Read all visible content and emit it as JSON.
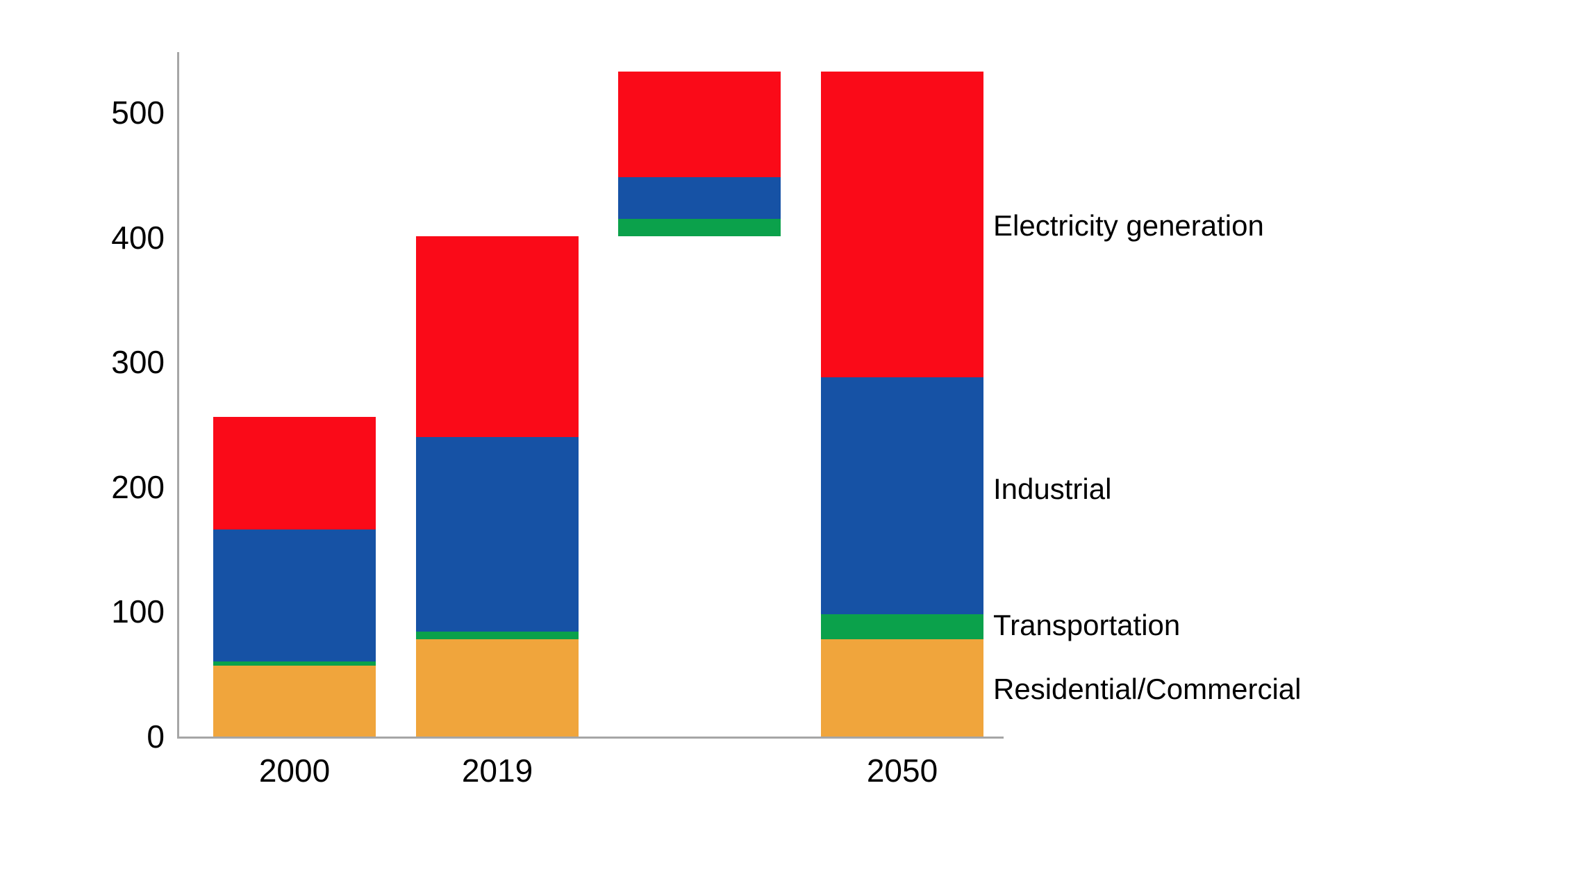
{
  "chart_data": {
    "type": "bar",
    "stacked": true,
    "title": "",
    "xlabel": "",
    "ylabel": "",
    "grid": false,
    "legend_position": "right-of-last-bar",
    "yticks": [
      0,
      100,
      200,
      300,
      400,
      500
    ],
    "ylim": [
      0,
      560
    ],
    "categories": [
      "2000",
      "2019",
      "",
      "2050"
    ],
    "series_order": [
      "Residential/Commercial",
      "Transportation",
      "Industrial",
      "Electricity generation"
    ],
    "series_colors": {
      "Residential/Commercial": "#f0a53c",
      "Transportation": "#0ba14b",
      "Industrial": "#1652a5",
      "Electricity generation": "#fa0a18"
    },
    "axis_color": "#a6a6a6",
    "text_color": "#000000",
    "bars": [
      {
        "category": "2000",
        "base": 0,
        "total": 256,
        "segments": {
          "Residential/Commercial": 57,
          "Transportation": 3,
          "Industrial": 106,
          "Electricity generation": 90
        }
      },
      {
        "category": "2019",
        "base": 0,
        "total": 401,
        "segments": {
          "Residential/Commercial": 78,
          "Transportation": 6,
          "Industrial": 156,
          "Electricity generation": 161
        }
      },
      {
        "category": "",
        "base": 401,
        "total": 533,
        "segments": {
          "Transportation": 14,
          "Industrial": 33,
          "Electricity generation": 85
        }
      },
      {
        "category": "2050",
        "base": 0,
        "total": 533,
        "segments": {
          "Residential/Commercial": 78,
          "Transportation": 20,
          "Industrial": 190,
          "Electricity generation": 245
        }
      }
    ],
    "right_labels": [
      {
        "text": "Electricity generation",
        "anchor_value": 409
      },
      {
        "text": "Industrial",
        "anchor_value": 198
      },
      {
        "text": "Transportation",
        "anchor_value": 89
      },
      {
        "text": "Residential/Commercial",
        "anchor_value": 38
      }
    ]
  }
}
